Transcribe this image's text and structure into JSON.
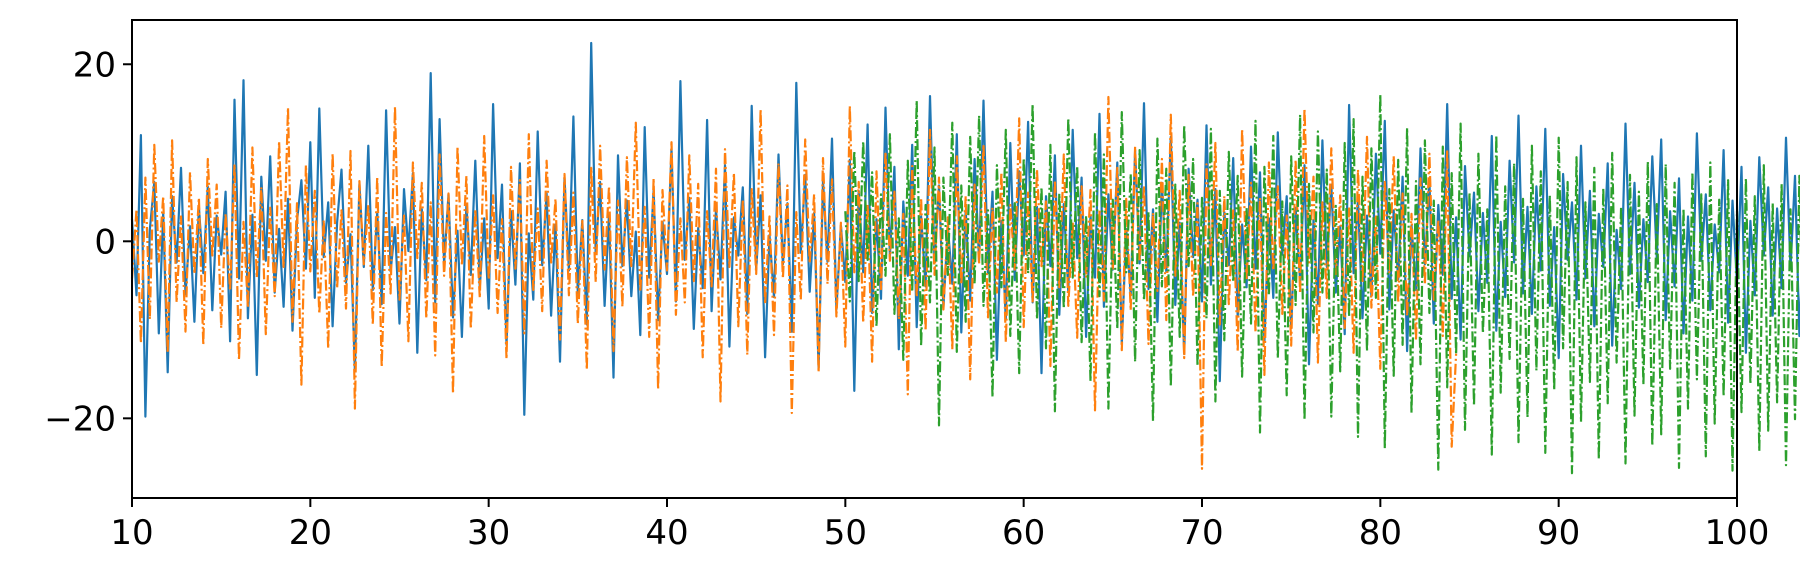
{
  "chart_data": {
    "type": "line",
    "title": "",
    "xlabel": "",
    "ylabel": "",
    "xlim": [
      10,
      100
    ],
    "ylim": [
      -29,
      25
    ],
    "xticks": [
      10,
      20,
      30,
      40,
      50,
      60,
      70,
      80,
      90,
      100
    ],
    "xtick_labels": [
      "10",
      "20",
      "30",
      "40",
      "50",
      "60",
      "70",
      "80",
      "90",
      "100"
    ],
    "yticks": [
      20,
      0,
      -20
    ],
    "ytick_labels": [
      "20",
      "0",
      "−20"
    ],
    "grid": false,
    "legend": "none",
    "series": [
      {
        "color": "#1f77b4",
        "style": "solid",
        "x_range": [
          10,
          100
        ],
        "x_step": 0.25,
        "values": [
          2.5,
          -6.1,
          12,
          -19.8,
          1.3,
          6.7,
          -10.4,
          3.2,
          -14.8,
          5.1,
          -2.4,
          8.3,
          -6,
          1.7,
          -9.1,
          3.9,
          -3.6,
          6.2,
          -7.8,
          2.9,
          -1.5,
          5.6,
          -11.3,
          16,
          -4.2,
          18.2,
          -8.7,
          3,
          -15.1,
          7.3,
          -2.2,
          9.6,
          -5.8,
          1.4,
          -7.4,
          4.8,
          -10.1,
          2.3,
          6.9,
          -3.1,
          11.2,
          -6.4,
          15,
          -1.8,
          4.4,
          -9.6,
          2.1,
          8.1,
          -4.7,
          0.8,
          -14.7,
          6.5,
          -2.9,
          10.8,
          -5.5,
          3.3,
          -7.1,
          14.8,
          -3.4,
          1.6,
          -9.3,
          5.9,
          -1.1,
          7.7,
          -12.6,
          3.6,
          -4.4,
          19,
          -6.9,
          13.8,
          -2.5,
          5.3,
          -8.6,
          1.2,
          -10.8,
          4.1,
          -3.8,
          9.1,
          -5.2,
          2.6,
          -7.6,
          15.5,
          -1.9,
          6.4,
          -11.7,
          3.4,
          -4.9,
          8.8,
          -19.6,
          0.9,
          -6.6,
          12.4,
          -2.7,
          5.4,
          -8.4,
          1.9,
          -13.6,
          7.2,
          -3.3,
          14.1,
          -5.9,
          2.4,
          -9.4,
          22.4,
          -1.4,
          6.7,
          -7.3,
          3.1,
          -15.4,
          9.7,
          -2.8,
          4.6,
          -6.2,
          1.1,
          -10.6,
          12.9,
          -4.1,
          5.8,
          -8.9,
          2.2,
          -3.7,
          10.4,
          -6.8,
          18.1,
          -2.1,
          4.9,
          -9.9,
          1.5,
          -5.3,
          13.7,
          -7.9,
          3.7,
          -4.3,
          8.6,
          -11.9,
          2.7,
          -1.6,
          6.1,
          -8.2,
          15.3,
          -3.2,
          5.2,
          -13.1,
          0.7,
          -6.3,
          9.8,
          -2.6,
          4.3,
          -10.2,
          17.9,
          -1.3,
          7.5,
          -5.7,
          3.2,
          -14.3,
          6.8,
          -2.3,
          11.6,
          -7.7,
          1.8,
          -4.6,
          9.2,
          -16.9,
          5.7,
          -3.5,
          13.2,
          -8.1,
          2.5,
          -6.5,
          15.1,
          -1.7,
          8.4,
          -12.2,
          4.5,
          -3.9,
          10.9,
          -9.7,
          2.8,
          -5.1,
          16.4,
          -2.3,
          6.3,
          -7.5,
          1.6,
          -4.8,
          12.1,
          -10.3,
          3.5,
          -6.7,
          9.3,
          -2.2,
          15.9,
          -3.6,
          5.6,
          -13.4,
          2.3,
          -8.8,
          11.1,
          -4.4,
          7.9,
          -1.6,
          13.5,
          -6.9,
          3.9,
          -14.9,
          5.1,
          -2.8,
          9.7,
          -8.3,
          4.2,
          -5.6,
          12.6,
          -1.9,
          7.2,
          -10.8,
          2.9,
          -4.1,
          14.4,
          -7.4,
          5.3,
          -3.2,
          8.9,
          -11.6,
          1.4,
          -6.1,
          10.2,
          -2.5,
          15.6,
          -5.4,
          3.6,
          -9.1,
          6.6,
          -3.4,
          11.8,
          -7.2,
          2.1,
          -12.7,
          8.2,
          -1.8,
          4.7,
          -6.8,
          13.1,
          -4.9,
          5.9,
          -15.8,
          3.3,
          -2.7,
          9.4,
          -8.5,
          1.9,
          -5.2,
          10.7,
          -3.1,
          7.8,
          -11.4,
          2.6,
          -6.4,
          12.3,
          -1.5,
          5.1,
          -9.8,
          3.8,
          -4.5,
          8.6,
          -13.9,
          2.4,
          -7.1,
          11.4,
          -2.9,
          6.4,
          -5.8,
          1.7,
          -10.5,
          15.4,
          -3.6,
          4.8,
          -8.7,
          2.9,
          -6.2,
          9.9,
          -1.4,
          13.6,
          -7.7,
          3.5,
          -4.3,
          7.3,
          -12.4,
          1.8,
          -5.5,
          10.5,
          -2.6,
          6.9,
          -9.3,
          4.1,
          -3.8,
          15.5,
          -6.5,
          2.7,
          -11.1,
          8.5,
          -1.7,
          5.5,
          -7.9,
          3.2,
          -4.7,
          11.9,
          -10.1,
          2.2,
          -6.3,
          9.1,
          -2.4,
          14.2,
          -5.9,
          3.9,
          -8.2,
          6.2,
          -3.3,
          12.7,
          -7.3,
          1.6,
          -13.2,
          7.6,
          -2.1,
          4.4,
          -6.6,
          10.8,
          -4.2,
          5.7,
          -9.6,
          3.1,
          -2.9,
          8.8,
          -11.8,
          1.3,
          -5.4,
          13.3,
          -3.7,
          6.6,
          -7.5,
          2.5,
          -4.6,
          9.6,
          -1.9,
          11.5,
          -8.9,
          3.4,
          -5.1,
          7.1,
          -10.4,
          2.8,
          -6.7,
          12.2,
          -2.2,
          5.3,
          -7.8,
          1.9,
          -3.5,
          10.3,
          -9.2,
          4.6,
          -4.8,
          8.4,
          -12.6,
          2.3,
          -6.1,
          9.5,
          -1.6,
          6.1,
          -8.4,
          3.7,
          -5.3,
          11.7,
          -3.1,
          7.4,
          -10.7,
          2.1,
          -4.4,
          8.9,
          -7.1,
          1.5,
          -6.5,
          10.6,
          -2.7,
          5.9,
          -8.6,
          3.3,
          -4.1,
          12.8,
          -9.5,
          2.6,
          -5.7,
          7.8,
          -1.8,
          6.8,
          -7.2,
          4.2,
          -3.4,
          9.2,
          -11.3,
          1.7,
          -6.9,
          8.3,
          -2.5,
          5.4,
          -9.1,
          3,
          -4.7,
          10.1,
          -7.6,
          2.4,
          -5.2,
          6.9,
          -3.6,
          8.7,
          -8.1,
          1.6,
          -6.3,
          13.8,
          -2.3,
          4.9,
          -7.4,
          3.6,
          -4.2,
          7.5,
          -10.2,
          2,
          -5.6,
          9.3,
          -2.8,
          6.3,
          -8.8,
          1.8,
          -4.9,
          7.7,
          -6.2,
          3.4,
          -3.1,
          5.8,
          -9.3,
          2.9,
          -5.9,
          8.1,
          -1.9,
          6.5,
          -8.3,
          4.5,
          -3.7,
          8.5,
          -7.1,
          2.5,
          -6.6,
          7.9,
          -2.4,
          5.6,
          -10,
          3.2,
          -4.5,
          6.2,
          -1.6,
          5.4,
          -8,
          2.7,
          -3.8,
          6,
          -4.5,
          8.4,
          8.7,
          5.6,
          3.2,
          -3.5
        ]
      },
      {
        "color": "#ff7f0e",
        "style": "dashdot",
        "x_range": [
          10,
          50
        ],
        "x_step": 0.25,
        "values": [
          -4.2,
          3.6,
          -11.5,
          7.2,
          -8.8,
          10.9,
          -2.3,
          5.1,
          -12.6,
          11.4,
          -6.9,
          2.8,
          -10.2,
          7.8,
          -3.7,
          4.9,
          -11.7,
          9.3,
          -1.6,
          6.4,
          -9.8,
          3.1,
          -5.6,
          8.7,
          -13.4,
          2.2,
          -7.5,
          10.6,
          -4.1,
          6.1,
          -10.5,
          3.8,
          -6.2,
          11.3,
          -2.9,
          15.1,
          -9.1,
          4.3,
          -16.2,
          8.6,
          -3.4,
          5.7,
          -8.2,
          2.4,
          -12.1,
          9.9,
          -5.3,
          3.5,
          -7.6,
          10.2,
          -18.9,
          6.8,
          -2.6,
          4.1,
          -9.4,
          7.3,
          -14.2,
          3.2,
          -5.9,
          15.2,
          -6.6,
          2.9,
          -11.3,
          8.9,
          -1.9,
          6.6,
          -8.7,
          4.4,
          -12.9,
          9.8,
          -3.9,
          5.4,
          -17.2,
          10.7,
          -2.7,
          7.4,
          -9.9,
          3.6,
          -6.4,
          11.9,
          -4.3,
          5.2,
          -8.1,
          2.5,
          -13.3,
          8.4,
          -3.1,
          6.9,
          -10.4,
          12.1,
          -5.5,
          3.7,
          -7.9,
          9.1,
          -2.4,
          4.8,
          -11.1,
          7.6,
          -6.1,
          5.5,
          -9.3,
          2.3,
          -14.5,
          8.3,
          -4.6,
          10.8,
          -3.2,
          6.2,
          -12.4,
          4.6,
          -7.4,
          9.5,
          -2.8,
          13.4,
          -5.7,
          3.9,
          -10.8,
          7.1,
          -16.7,
          5.8,
          -3.3,
          11.2,
          -8.3,
          2.6,
          -6.9,
          9.7,
          -4.5,
          6.5,
          -13.1,
          3.4,
          -5.1,
          8.2,
          -18.1,
          10.4,
          -2.9,
          7.7,
          -9.6,
          4.7,
          -12.8,
          5.9,
          -3.7,
          14.9,
          -7.1,
          2.8,
          -10.6,
          8.8,
          -4.2,
          6.3,
          -19.4,
          3.3,
          -6.6,
          11.5,
          -2.5,
          5.3,
          -14.8,
          9.4,
          -4.8,
          7,
          -8.5,
          2.1,
          -11.9,
          15.3,
          -3.5,
          6.7,
          -9.2,
          4.2,
          -13.6,
          7.9,
          -5.4,
          10.1,
          -2.2,
          5.6,
          -8.8,
          3.1,
          -17.3,
          8.5,
          -6.3,
          4.9,
          -10.1,
          12.6,
          -3.8,
          7.2,
          -7.7,
          2.7,
          -12.2,
          9.6,
          -4.9,
          5.1,
          -15.6,
          6.4,
          -2.6,
          10.9,
          -8.6,
          3.8,
          -5.8,
          7.8,
          -11.4,
          4.1,
          -3.2,
          13.9,
          -9.7,
          5.5,
          -6.8,
          8.1,
          -2.8,
          4.5,
          -14.1,
          6.9,
          -5.2,
          9.8,
          -7.3,
          2.2,
          -10.9,
          6.2,
          -4.1,
          5.8,
          -19.1,
          3.6,
          -6.7,
          16.3,
          -3.1,
          8.3,
          -12.3,
          4.8,
          -7.8,
          10.7,
          -2.3,
          6.1,
          -11.6,
          3.2,
          -5.6,
          9.3,
          -8.9,
          14.3,
          -3.9,
          5.7,
          -13.2,
          7.5,
          -6.2,
          4.3,
          -25.7,
          8.7,
          -2.7,
          11.1,
          -9.4,
          5.1,
          -7.1,
          3.5,
          -12.5,
          12.7,
          -4.4,
          6.6,
          -10.3,
          4.9,
          -15.1,
          8.9,
          -3.3,
          6.2,
          -8.2,
          2.9,
          -11.8,
          9.2,
          -5.9,
          15,
          -2.4,
          7.3,
          -13.7,
          4.4,
          -6.4,
          10.5,
          -3.7,
          5.2,
          -9.8,
          3.7,
          -12.6,
          8.1,
          -4.7,
          11.8,
          -7.5,
          2.8,
          -14.4,
          6.7,
          -3.6,
          9.6,
          -6.9,
          5.4,
          -8.4,
          3.1,
          -11.2,
          7.1,
          -4.8,
          9.9,
          -6.6,
          2.4,
          -10.7,
          10.3,
          -23.2,
          -12.7
        ]
      },
      {
        "color": "#2ca02c",
        "style": "dashdot",
        "x_range": [
          50,
          99.75
        ],
        "x_step": 0.25,
        "values": [
          3.4,
          -6.8,
          10.2,
          -4.5,
          11.3,
          -2.1,
          7.8,
          -9.6,
          5.3,
          -3.9,
          12.1,
          -8.2,
          2.6,
          -13.4,
          9.1,
          -5.7,
          15.9,
          -11.8,
          4.1,
          -6.9,
          10.6,
          -20.8,
          7.2,
          -3.8,
          13.4,
          -12.5,
          6.3,
          -9.1,
          11.8,
          -4.8,
          14.2,
          -7.3,
          3.5,
          -17.6,
          8.6,
          -5.2,
          12.6,
          -10.7,
          4.3,
          -14.9,
          9.4,
          -3.6,
          15.5,
          -8.8,
          6.1,
          -12.1,
          10.9,
          -19.2,
          5.4,
          -7.6,
          13.9,
          -4.1,
          8.5,
          -11.4,
          2.9,
          -15.8,
          12.3,
          -6.2,
          9.8,
          -18.9,
          4.7,
          -9.9,
          14.6,
          -3.5,
          7.6,
          -13.6,
          10.3,
          -6.7,
          3.3,
          -20.3,
          11.6,
          -5.1,
          8.2,
          -16.4,
          6.4,
          -10.8,
          13.1,
          -2.8,
          9.3,
          -14.1,
          4.9,
          -8.7,
          12.7,
          -18.1,
          5.7,
          -11.2,
          10.1,
          -4.6,
          7.4,
          -15.3,
          3.8,
          -9.3,
          13.6,
          -21.6,
          8.4,
          -6.1,
          11.9,
          -13.2,
          4.5,
          -17.4,
          9.6,
          -7.2,
          14.3,
          -20.2,
          6.5,
          -10.3,
          12.4,
          -5.8,
          8.1,
          -19.8,
          4,
          -14.7,
          11.1,
          -8.5,
          13.8,
          -22.1,
          7.3,
          -12.4,
          10.5,
          -6.4,
          16.6,
          -23.4,
          5.9,
          -15.2,
          9.2,
          -11.7,
          12.8,
          -19.4,
          6.8,
          -13.9,
          11.4,
          -8.1,
          4.6,
          -25.8,
          10.7,
          -16.5,
          7.7,
          -12.8,
          13.3,
          -21.3,
          5.5,
          -18.6,
          9.9,
          -10.4,
          3.6,
          -24.1,
          12,
          -17.1,
          6.2,
          -13.3,
          8.8,
          -22.7,
          4.8,
          -19.9,
          10.8,
          -14.6,
          7.9,
          -23.9,
          5.2,
          -16.8,
          11.7,
          -12.1,
          6.7,
          -26.2,
          9.5,
          -20.4,
          4.4,
          -15.9,
          8.3,
          -24.6,
          6,
          -18.3,
          10,
          -13.7,
          3.9,
          -25.1,
          7.5,
          -19.7,
          5.6,
          -16.2,
          9,
          -23.1,
          4.2,
          -21.8,
          8.7,
          -14.4,
          6.6,
          -25.6,
          3.7,
          -18.9,
          7.8,
          -15.6,
          5.3,
          -24.3,
          8.9,
          -20.6,
          4.7,
          -17.5,
          6.9,
          -25.9,
          3.4,
          -19.3,
          7.1,
          -16.1,
          5.1,
          -23.7,
          8.6,
          -21.4,
          4.3,
          -18.2,
          6.5,
          -25.3,
          3.6,
          -20.1,
          7.4,
          -16.7,
          4.9,
          -24.8,
          6.3,
          -22.2,
          3.8,
          -19.1,
          5.8,
          -25.5,
          4.1,
          -20.8,
          6.7,
          -17.3,
          3.5,
          -24.2,
          5.4,
          -22.5,
          4.6,
          -18.7,
          6.1,
          -25.7,
          3.2,
          -20.3,
          5.9,
          -17.8,
          4.4,
          -24.5,
          5.7,
          -21.9,
          3.9,
          -19.5,
          6.2,
          -23.6,
          4.8,
          -21.1,
          3.3,
          -18.4,
          5.5,
          -22.7,
          2.6,
          -23.8,
          -21.5,
          -22.4,
          -21.7,
          -23.1,
          -22.6
        ]
      }
    ]
  }
}
